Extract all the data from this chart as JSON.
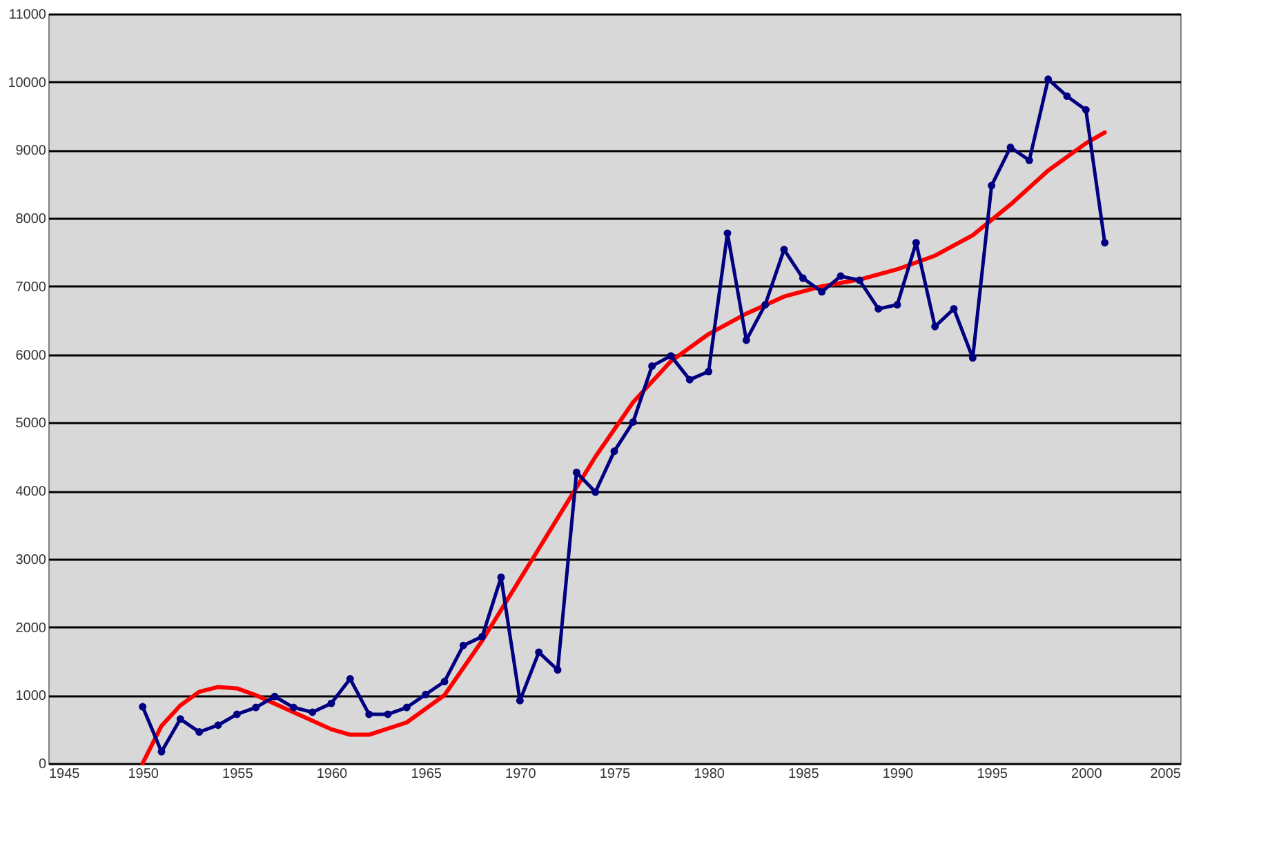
{
  "chart_data": {
    "type": "line",
    "grid": "y",
    "xlim": [
      1945,
      2005
    ],
    "xticks": [
      1945,
      1950,
      1955,
      1960,
      1965,
      1970,
      1975,
      1980,
      1985,
      1990,
      1995,
      2000,
      2005
    ],
    "ylim": [
      0,
      11000
    ],
    "yticks": [
      0,
      1000,
      2000,
      3000,
      4000,
      5000,
      6000,
      7000,
      8000,
      9000,
      10000,
      11000
    ],
    "series": [
      {
        "color": "#000080",
        "marker": "circle",
        "x": [
          1950,
          1951,
          1952,
          1953,
          1954,
          1955,
          1956,
          1957,
          1958,
          1959,
          1960,
          1961,
          1962,
          1963,
          1964,
          1965,
          1966,
          1967,
          1968,
          1969,
          1970,
          1971,
          1972,
          1973,
          1974,
          1975,
          1976,
          1977,
          1978,
          1979,
          1980,
          1981,
          1982,
          1983,
          1984,
          1985,
          1986,
          1987,
          1988,
          1989,
          1990,
          1991,
          1992,
          1993,
          1994,
          1995,
          1996,
          1997,
          1998,
          1999,
          2000,
          2001
        ],
        "values": [
          830,
          170,
          650,
          460,
          560,
          720,
          820,
          980,
          820,
          750,
          880,
          1240,
          720,
          720,
          820,
          1010,
          1200,
          1730,
          1860,
          2730,
          920,
          1630,
          1370,
          4270,
          3980,
          4580,
          5010,
          5830,
          5980,
          5630,
          5750,
          7780,
          6210,
          6730,
          7540,
          7120,
          6920,
          7150,
          7090,
          6670,
          6730,
          7640,
          6410,
          6670,
          5950,
          8480,
          9040,
          8850,
          10040,
          9790,
          9590,
          7640
        ]
      },
      {
        "color": "#ff0000",
        "marker": "none",
        "x": [
          1950,
          1951,
          1952,
          1953,
          1954,
          1955,
          1956,
          1958,
          1960,
          1961,
          1962,
          1964,
          1966,
          1968,
          1970,
          1972,
          1974,
          1976,
          1978,
          1980,
          1982,
          1984,
          1986,
          1988,
          1990,
          1992,
          1994,
          1996,
          1998,
          2000,
          2001
        ],
        "values": [
          0,
          550,
          850,
          1050,
          1120,
          1100,
          1000,
          750,
          500,
          420,
          420,
          600,
          1000,
          1800,
          2700,
          3600,
          4500,
          5300,
          5900,
          6300,
          6600,
          6850,
          7000,
          7100,
          7250,
          7450,
          7750,
          8200,
          8700,
          9100,
          9260
        ]
      }
    ]
  }
}
